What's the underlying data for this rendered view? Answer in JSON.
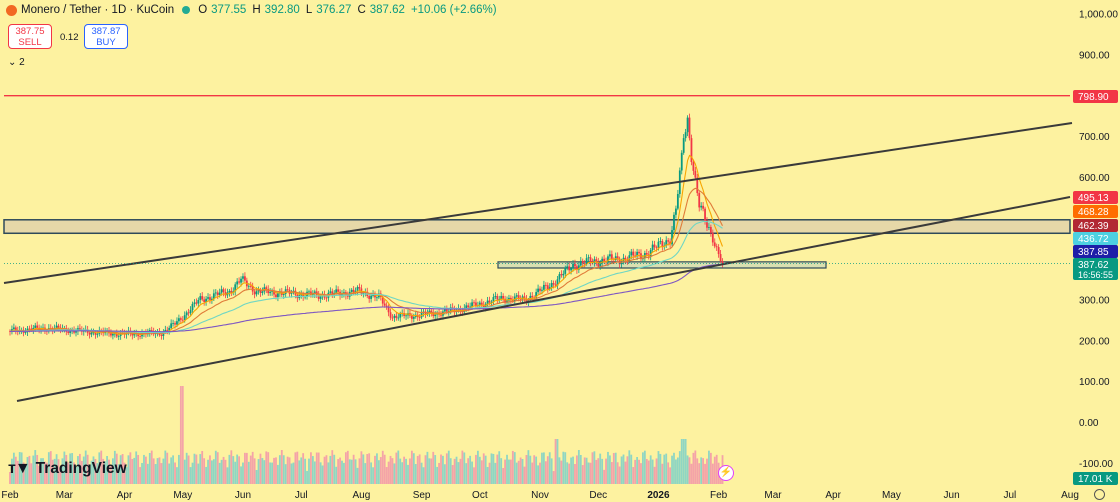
{
  "header": {
    "symbol": "Monero / Tether · 1D · KuCoin",
    "open_label": "O",
    "open": "377.55",
    "high_label": "H",
    "high": "392.80",
    "low_label": "L",
    "low": "376.27",
    "close_label": "C",
    "close": "387.62",
    "change": "+10.06 (+2.66%)"
  },
  "trade": {
    "sell_price": "387.75",
    "sell_label": "SELL",
    "spread": "0.12",
    "buy_price": "387.87",
    "buy_label": "BUY"
  },
  "indicators": {
    "toggle": "2"
  },
  "branding": {
    "logo": "TradingView"
  },
  "colors": {
    "background": "#fdf2a0",
    "resistance": "#f23645",
    "channel": "#3a3a3a",
    "zone_fill": "#e6d8a8",
    "zone_border": "#2e4a5a",
    "candle_up": "#089981",
    "candle_down": "#f23645",
    "ema_fast": "#f7a600",
    "ema_mid": "#e07b39",
    "ema_slow": "#6fd6c4",
    "ema_long": "#7e57c2"
  },
  "chart_data": {
    "type": "candlestick",
    "x_axis": {
      "ticks": [
        "Feb",
        "Mar",
        "Apr",
        "May",
        "Jun",
        "Jul",
        "Aug",
        "Sep",
        "Oct",
        "Nov",
        "Dec",
        "2026",
        "Feb",
        "Mar",
        "Apr",
        "May",
        "Jun",
        "Jul",
        "Aug"
      ]
    },
    "y_axis": {
      "ticks": [
        "1,000.00",
        "900.00",
        "700.00",
        "600.00",
        "300.00",
        "200.00",
        "100.00",
        "0.00",
        "-100.00"
      ],
      "scale": "linear"
    },
    "price_labels": [
      {
        "value": "798.90",
        "color": "#f23645",
        "text_color": "#ffffff"
      },
      {
        "value": "495.13",
        "color": "#f23645",
        "text_color": "#ffffff"
      },
      {
        "value": "468.28",
        "color": "#ff6d00",
        "text_color": "#ffffff"
      },
      {
        "value": "462.39",
        "color": "#b22833",
        "text_color": "#ffffff"
      },
      {
        "value": "436.72",
        "color": "#4dd0e1",
        "text_color": "#ffffff"
      },
      {
        "value": "387.85",
        "color": "#1e1ea8",
        "text_color": "#ffffff"
      },
      {
        "value": "387.62",
        "sub": "16:56:55",
        "color": "#089981",
        "text_color": "#ffffff"
      },
      {
        "value": "17.01 K",
        "color": "#089981",
        "text_color": "#ffffff"
      }
    ],
    "last_close": 387.62,
    "resistance": 798.9,
    "zones": [
      {
        "top": 495,
        "bottom": 462,
        "extends": "right"
      },
      {
        "top": 392,
        "bottom": 377,
        "extends": "limited"
      }
    ],
    "close_path": [
      [
        "2025-02-01",
        223
      ],
      [
        "2025-02-20",
        230
      ],
      [
        "2025-03-10",
        222
      ],
      [
        "2025-03-31",
        215
      ],
      [
        "2025-04-20",
        218
      ],
      [
        "2025-04-27",
        240
      ],
      [
        "2025-05-10",
        300
      ],
      [
        "2025-05-25",
        320
      ],
      [
        "2025-05-31",
        348
      ],
      [
        "2025-06-08",
        320
      ],
      [
        "2025-06-25",
        315
      ],
      [
        "2025-07-10",
        310
      ],
      [
        "2025-07-31",
        320
      ],
      [
        "2025-08-10",
        305
      ],
      [
        "2025-08-17",
        258
      ],
      [
        "2025-08-31",
        262
      ],
      [
        "2025-09-14",
        270
      ],
      [
        "2025-09-28",
        285
      ],
      [
        "2025-10-12",
        303
      ],
      [
        "2025-10-24",
        300
      ],
      [
        "2025-11-01",
        320
      ],
      [
        "2025-11-09",
        345
      ],
      [
        "2025-11-18",
        385
      ],
      [
        "2025-12-01",
        395
      ],
      [
        "2025-12-14",
        400
      ],
      [
        "2025-12-24",
        410
      ],
      [
        "2026-01-01",
        430
      ],
      [
        "2026-01-07",
        450
      ],
      [
        "2026-01-10",
        520
      ],
      [
        "2026-01-13",
        640
      ],
      [
        "2026-01-14",
        700
      ],
      [
        "2026-01-16",
        740
      ],
      [
        "2026-01-18",
        660
      ],
      [
        "2026-01-20",
        590
      ],
      [
        "2026-01-22",
        530
      ],
      [
        "2026-01-26",
        480
      ],
      [
        "2026-01-29",
        455
      ],
      [
        "2026-01-31",
        425
      ],
      [
        "2026-02-03",
        388
      ]
    ]
  }
}
